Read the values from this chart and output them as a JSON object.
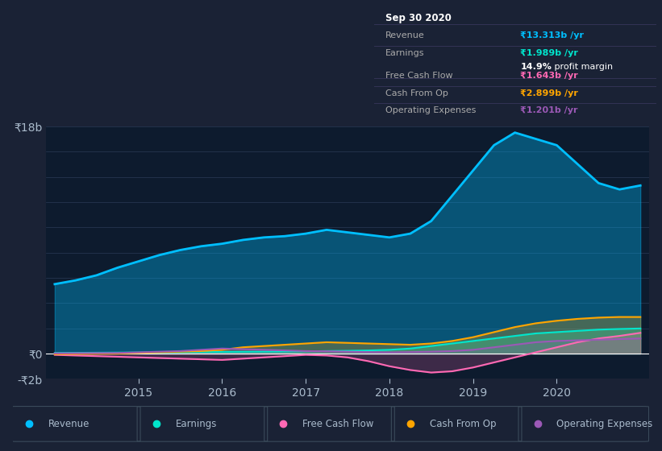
{
  "bg_color": "#1a2235",
  "plot_bg_color": "#0d1b2e",
  "grid_color": "#2a3a55",
  "text_color": "#aabbcc",
  "title_color": "#ffffff",
  "x_years": [
    2014.0,
    2014.25,
    2014.5,
    2014.75,
    2015.0,
    2015.25,
    2015.5,
    2015.75,
    2016.0,
    2016.25,
    2016.5,
    2016.75,
    2017.0,
    2017.25,
    2017.5,
    2017.75,
    2018.0,
    2018.25,
    2018.5,
    2018.75,
    2019.0,
    2019.25,
    2019.5,
    2019.75,
    2020.0,
    2020.25,
    2020.5,
    2020.75,
    2021.0
  ],
  "revenue": [
    5.5,
    5.8,
    6.2,
    6.8,
    7.3,
    7.8,
    8.2,
    8.5,
    8.7,
    9.0,
    9.2,
    9.3,
    9.5,
    9.8,
    9.6,
    9.4,
    9.2,
    9.5,
    10.5,
    12.5,
    14.5,
    16.5,
    17.5,
    17.0,
    16.5,
    15.0,
    13.5,
    13.0,
    13.313
  ],
  "earnings": [
    0.05,
    0.06,
    0.07,
    0.08,
    0.09,
    0.1,
    0.11,
    0.12,
    0.13,
    0.14,
    0.15,
    0.16,
    0.18,
    0.2,
    0.22,
    0.25,
    0.3,
    0.4,
    0.6,
    0.8,
    1.0,
    1.2,
    1.4,
    1.6,
    1.7,
    1.8,
    1.9,
    1.95,
    1.989
  ],
  "free_cash_flow": [
    -0.1,
    -0.15,
    -0.2,
    -0.25,
    -0.3,
    -0.35,
    -0.4,
    -0.45,
    -0.5,
    -0.4,
    -0.3,
    -0.2,
    -0.1,
    -0.15,
    -0.3,
    -0.6,
    -1.0,
    -1.3,
    -1.5,
    -1.4,
    -1.1,
    -0.7,
    -0.3,
    0.1,
    0.5,
    0.9,
    1.2,
    1.4,
    1.643
  ],
  "cash_from_op": [
    -0.05,
    -0.03,
    -0.01,
    0.0,
    0.05,
    0.1,
    0.15,
    0.2,
    0.3,
    0.5,
    0.6,
    0.7,
    0.8,
    0.9,
    0.85,
    0.8,
    0.75,
    0.7,
    0.8,
    1.0,
    1.3,
    1.7,
    2.1,
    2.4,
    2.6,
    2.75,
    2.85,
    2.9,
    2.899
  ],
  "operating_expenses": [
    0.02,
    0.03,
    0.04,
    0.05,
    0.1,
    0.15,
    0.2,
    0.3,
    0.4,
    0.35,
    0.3,
    0.25,
    0.2,
    0.18,
    0.15,
    0.12,
    0.1,
    0.12,
    0.15,
    0.2,
    0.3,
    0.5,
    0.7,
    0.9,
    1.0,
    1.05,
    1.1,
    1.15,
    1.201
  ],
  "revenue_color": "#00bfff",
  "earnings_color": "#00e5cc",
  "free_cash_flow_color": "#ff69b4",
  "cash_from_op_color": "#ffa500",
  "operating_expenses_color": "#9b59b6",
  "ylim": [
    -2.0,
    18.0
  ],
  "xlim": [
    2013.9,
    2021.1
  ],
  "yticks": [
    -2,
    0,
    2,
    4,
    6,
    8,
    10,
    12,
    14,
    16,
    18
  ],
  "xtick_positions": [
    2015,
    2016,
    2017,
    2018,
    2019,
    2020
  ],
  "xtick_labels": [
    "2015",
    "2016",
    "2017",
    "2018",
    "2019",
    "2020"
  ],
  "info_box": {
    "date": "Sep 30 2020",
    "revenue_val": "₹13.313b",
    "earnings_val": "₹1.989b",
    "profit_margin": "14.9%",
    "fcf_val": "₹1.643b",
    "cash_from_op_val": "₹2.899b",
    "op_exp_val": "₹1.201b",
    "revenue_color": "#00bfff",
    "earnings_color": "#00e5cc",
    "fcf_color": "#ff69b4",
    "cash_from_op_color": "#ffa500",
    "op_exp_color": "#9b59b6",
    "bg_color": "#000000",
    "text_color": "#aaaaaa",
    "title_color": "#ffffff"
  },
  "legend_items": [
    {
      "label": "Revenue",
      "color": "#00bfff"
    },
    {
      "label": "Earnings",
      "color": "#00e5cc"
    },
    {
      "label": "Free Cash Flow",
      "color": "#ff69b4"
    },
    {
      "label": "Cash From Op",
      "color": "#ffa500"
    },
    {
      "label": "Operating Expenses",
      "color": "#9b59b6"
    }
  ]
}
